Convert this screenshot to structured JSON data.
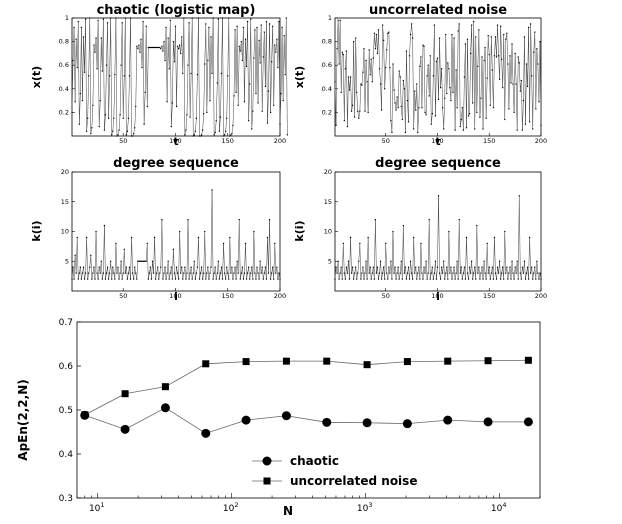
{
  "chart_data": [
    {
      "type": "line",
      "title": "chaotic (logistic map)",
      "xlabel": "t",
      "ylabel": "x(t)",
      "xlim": [
        1,
        200
      ],
      "ylim": [
        0,
        1
      ],
      "xticks": [
        "50",
        "100",
        "150",
        "200"
      ],
      "yticks": [
        "0.2",
        "0.4",
        "0.6",
        "0.8",
        "1"
      ],
      "series": [
        {
          "values": [
            0.2,
            0.64,
            0.92,
            0.29,
            0.82,
            0.58,
            0.97,
            0.1,
            0.36,
            0.92,
            0.3,
            0.84,
            0.54,
            0.99,
            0.04,
            0.15,
            0.51,
            1.0,
            0.02,
            0.07,
            0.26,
            0.77,
            0.71,
            0.83,
            0.57,
            0.98,
            0.08,
            0.3,
            0.83,
            0.55,
            0.99,
            0.05,
            0.18,
            0.6,
            0.96,
            0.15,
            0.51,
            1.0,
            0.01,
            0.04,
            0.15,
            0.52,
            1.0,
            0.0,
            0.01,
            0.05,
            0.18,
            0.6,
            0.96,
            0.15,
            0.51,
            1.0,
            0.01,
            0.04,
            0.15,
            0.51,
            1.0,
            0.0,
            0.0,
            0.02,
            0.07,
            0.25,
            0.76,
            0.74,
            0.77,
            0.71,
            0.82,
            0.58,
            0.97,
            0.1,
            0.37,
            0.93,
            0.25,
            0.75,
            0.75,
            0.75,
            0.75,
            0.75,
            0.75,
            0.75,
            0.75,
            0.75,
            0.75,
            0.75,
            0.75,
            0.74,
            0.76,
            0.72,
            0.8,
            0.64,
            0.92,
            0.29,
            0.83,
            0.57,
            0.98,
            0.08,
            0.28,
            0.8,
            0.63,
            0.93,
            0.25,
            0.76,
            0.74,
            0.77,
            0.7,
            0.84,
            0.53,
            1.0,
            0.01,
            0.05,
            0.18,
            0.6,
            0.96,
            0.16,
            0.53,
            1.0,
            0.0,
            0.01,
            0.04,
            0.15,
            0.52,
            1.0,
            0.0,
            0.0,
            0.01,
            0.05,
            0.19,
            0.61,
            0.95,
            0.2,
            0.64,
            0.92,
            0.3,
            0.84,
            0.53,
            1.0,
            0.01,
            0.03,
            0.13,
            0.45,
            0.99,
            0.04,
            0.16,
            0.53,
            1.0,
            0.0,
            0.01,
            0.04,
            0.15,
            0.51,
            1.0,
            0.0,
            0.01,
            0.02,
            0.09,
            0.34,
            0.9,
            0.37,
            0.93,
            0.26,
            0.76,
            0.72,
            0.8,
            0.64,
            0.92,
            0.29,
            0.82,
            0.59,
            0.97,
            0.13,
            0.44,
            0.99,
            0.06,
            0.21,
            0.66,
            0.9,
            0.36,
            0.92,
            0.28,
            0.81,
            0.62,
            0.94,
            0.21,
            0.67,
            0.88,
            0.42,
            0.97,
            0.11,
            0.38,
            0.95,
            0.2,
            0.63,
            0.93,
            0.26,
            0.77,
            0.71,
            0.82,
            0.58,
            0.97,
            0.1,
            0.36,
            0.92,
            0.3,
            0.85,
            0.52,
            1.0,
            0.01
          ]
        }
      ]
    },
    {
      "type": "line",
      "title": "uncorrelated noise",
      "xlabel": "t",
      "ylabel": "x(t)",
      "xlim": [
        1,
        200
      ],
      "ylim": [
        0,
        1
      ],
      "xticks": [
        "50",
        "100",
        "150",
        "200"
      ],
      "yticks": [
        "0.2",
        "0.4",
        "0.6",
        "0.8",
        "1"
      ],
      "series": [
        {
          "values": [
            0.46,
            0.09,
            0.74,
            0.98,
            0.61,
            0.98,
            0.37,
            0.71,
            0.69,
            0.13,
            0.57,
            0.72,
            0.08,
            0.5,
            0.39,
            0.5,
            0.21,
            0.26,
            0.8,
            0.16,
            0.83,
            0.37,
            0.21,
            0.15,
            0.21,
            0.44,
            0.43,
            0.54,
            0.74,
            0.21,
            0.64,
            0.46,
            0.2,
            0.73,
            0.52,
            0.65,
            0.46,
            0.66,
            0.87,
            0.74,
            0.86,
            0.7,
            0.9,
            0.57,
            0.44,
            0.22,
            0.94,
            0.81,
            0.4,
            0.58,
            0.73,
            0.87,
            0.88,
            0.58,
            0.13,
            0.03,
            0.61,
            0.39,
            0.28,
            0.22,
            0.33,
            0.24,
            0.55,
            0.5,
            0.25,
            0.14,
            0.47,
            0.4,
            0.03,
            0.72,
            0.3,
            0.12,
            0.68,
            0.86,
            0.95,
            0.83,
            0.06,
            0.38,
            0.22,
            0.44,
            0.03,
            0.24,
            0.59,
            0.67,
            0.24,
            0.77,
            0.76,
            0.2,
            0.18,
            0.51,
            0.6,
            0.34,
            0.68,
            0.1,
            0.19,
            0.51,
            0.94,
            0.17,
            0.63,
            0.66,
            0.31,
            0.83,
            0.41,
            0.57,
            0.24,
            0.06,
            0.32,
            0.86,
            0.36,
            0.62,
            0.57,
            0.41,
            0.3,
            0.86,
            0.37,
            0.83,
            0.05,
            0.56,
            0.24,
            0.89,
            0.95,
            0.08,
            0.14,
            0.24,
            0.05,
            0.5,
            0.78,
            0.07,
            0.82,
            0.17,
            0.19,
            0.7,
            0.94,
            0.28,
            0.97,
            0.06,
            0.84,
            0.2,
            0.59,
            0.9,
            0.16,
            0.32,
            0.67,
            0.06,
            0.64,
            0.75,
            0.15,
            0.49,
            0.85,
            0.69,
            0.26,
            0.84,
            0.56,
            0.24,
            0.68,
            0.84,
            0.67,
            0.94,
            0.68,
            0.48,
            0.93,
            0.65,
            0.41,
            0.86,
            0.14,
            0.82,
            0.87,
            0.61,
            0.23,
            0.68,
            0.45,
            0.78,
            0.44,
            0.2,
            0.7,
            0.44,
            0.05,
            0.67,
            0.62,
            0.38,
            0.47,
            0.05,
            0.3,
            0.84,
            0.1,
            0.61,
            0.42,
            0.92,
            0.12,
            0.95,
            0.51,
            0.06,
            0.71,
            0.88,
            0.23,
            0.74,
            0.61,
            0.29,
            0.8,
            0.09
          ]
        }
      ]
    },
    {
      "type": "line",
      "title": "degree sequence",
      "xlabel": "i",
      "ylabel": "k(i)",
      "xlim": [
        1,
        200
      ],
      "ylim": [
        0,
        20
      ],
      "xticks": [
        "50",
        "100",
        "150",
        "200"
      ],
      "yticks": [
        "5",
        "10",
        "15",
        "20"
      ],
      "series": [
        {
          "values": [
            2,
            4,
            2,
            6,
            3,
            9,
            2,
            3,
            4,
            2,
            3,
            4,
            2,
            3,
            9,
            2,
            3,
            4,
            6,
            2,
            3,
            4,
            2,
            10,
            3,
            2,
            4,
            3,
            5,
            2,
            3,
            11,
            2,
            3,
            4,
            2,
            3,
            5,
            2,
            4,
            3,
            2,
            8,
            3,
            4,
            2,
            3,
            5,
            2,
            3,
            7,
            3,
            4,
            2,
            3,
            4,
            2,
            9,
            3,
            2,
            4,
            3,
            2,
            5,
            5,
            5,
            5,
            5,
            5,
            5,
            5,
            5,
            8,
            2,
            3,
            4,
            2,
            5,
            3,
            9,
            2,
            3,
            4,
            2,
            3,
            4,
            12,
            2,
            3,
            4,
            2,
            3,
            5,
            2,
            3,
            4,
            2,
            7,
            3,
            2,
            4,
            3,
            2,
            10,
            3,
            4,
            2,
            3,
            4,
            2,
            3,
            12,
            2,
            3,
            4,
            2,
            3,
            5,
            2,
            3,
            4,
            9,
            2,
            3,
            4,
            2,
            3,
            10,
            2,
            3,
            4,
            2,
            3,
            4,
            17,
            2,
            3,
            4,
            2,
            3,
            5,
            2,
            3,
            4,
            2,
            8,
            3,
            2,
            4,
            3,
            2,
            9,
            3,
            4,
            2,
            3,
            4,
            2,
            5,
            3,
            12,
            2,
            3,
            4,
            2,
            3,
            8,
            2,
            3,
            4,
            2,
            3,
            4,
            2,
            10,
            3,
            2,
            4,
            3,
            2,
            5,
            3,
            4,
            2,
            3,
            4,
            2,
            9,
            3,
            12,
            2,
            3,
            4,
            2,
            8,
            3,
            4,
            2,
            3,
            2
          ]
        }
      ]
    },
    {
      "type": "line",
      "title": "degree sequence",
      "xlabel": "i",
      "ylabel": "k(i)",
      "xlim": [
        1,
        200
      ],
      "ylim": [
        0,
        20
      ],
      "xticks": [
        "50",
        "100",
        "150",
        "200"
      ],
      "yticks": [
        "5",
        "10",
        "15",
        "20"
      ],
      "series": [
        {
          "values": [
            2,
            4,
            3,
            5,
            2,
            3,
            4,
            2,
            8,
            3,
            2,
            4,
            3,
            5,
            2,
            9,
            3,
            4,
            2,
            3,
            4,
            2,
            3,
            5,
            8,
            2,
            3,
            4,
            2,
            3,
            5,
            2,
            9,
            3,
            4,
            2,
            3,
            4,
            2,
            12,
            3,
            4,
            2,
            3,
            5,
            2,
            3,
            4,
            2,
            8,
            3,
            2,
            4,
            3,
            5,
            2,
            10,
            3,
            4,
            2,
            3,
            4,
            2,
            3,
            5,
            2,
            11,
            3,
            4,
            2,
            3,
            4,
            2,
            5,
            3,
            2,
            9,
            3,
            4,
            2,
            3,
            4,
            2,
            8,
            3,
            2,
            4,
            3,
            5,
            2,
            3,
            12,
            2,
            3,
            4,
            2,
            3,
            5,
            2,
            4,
            16,
            3,
            2,
            4,
            3,
            5,
            2,
            3,
            4,
            2,
            10,
            3,
            4,
            2,
            3,
            4,
            2,
            3,
            5,
            2,
            12,
            3,
            4,
            2,
            3,
            4,
            2,
            9,
            3,
            2,
            4,
            3,
            5,
            2,
            3,
            4,
            2,
            11,
            3,
            4,
            2,
            3,
            4,
            2,
            5,
            3,
            2,
            8,
            3,
            4,
            2,
            3,
            4,
            2,
            9,
            3,
            2,
            4,
            3,
            5,
            2,
            3,
            4,
            2,
            10,
            3,
            4,
            2,
            3,
            4,
            2,
            5,
            3,
            2,
            4,
            3,
            5,
            2,
            16,
            3,
            2,
            4,
            3,
            5,
            2,
            3,
            4,
            2,
            9,
            3,
            4,
            2,
            3,
            4,
            2,
            5,
            3,
            2,
            3,
            2
          ]
        }
      ]
    },
    {
      "type": "line",
      "xlabel": "N",
      "ylabel": "ApEn(2,2,N)",
      "xscale": "log",
      "xlim": [
        7,
        20000
      ],
      "ylim": [
        0.3,
        0.7
      ],
      "yticks": [
        "0.3",
        "0.4",
        "0.5",
        "0.6",
        "0.7"
      ],
      "xticks": [
        {
          "value": 10,
          "base": "10",
          "exp": "1"
        },
        {
          "value": 100,
          "base": "10",
          "exp": "2"
        },
        {
          "value": 1000,
          "base": "10",
          "exp": "3"
        },
        {
          "value": 10000,
          "base": "10",
          "exp": "4"
        }
      ],
      "legend_position": "bottom-center",
      "x": [
        8,
        16,
        32,
        64,
        128,
        256,
        512,
        1024,
        2048,
        4096,
        8192,
        16384
      ],
      "series": [
        {
          "name": "chaotic",
          "marker": "circle",
          "values": [
            0.488,
            0.456,
            0.505,
            0.447,
            0.477,
            0.487,
            0.472,
            0.471,
            0.469,
            0.477,
            0.473,
            0.473
          ]
        },
        {
          "name": "uncorrelated noise",
          "marker": "square",
          "values": [
            0.489,
            0.537,
            0.553,
            0.605,
            0.61,
            0.611,
            0.611,
            0.603,
            0.61,
            0.611,
            0.612,
            0.613
          ]
        }
      ]
    }
  ]
}
